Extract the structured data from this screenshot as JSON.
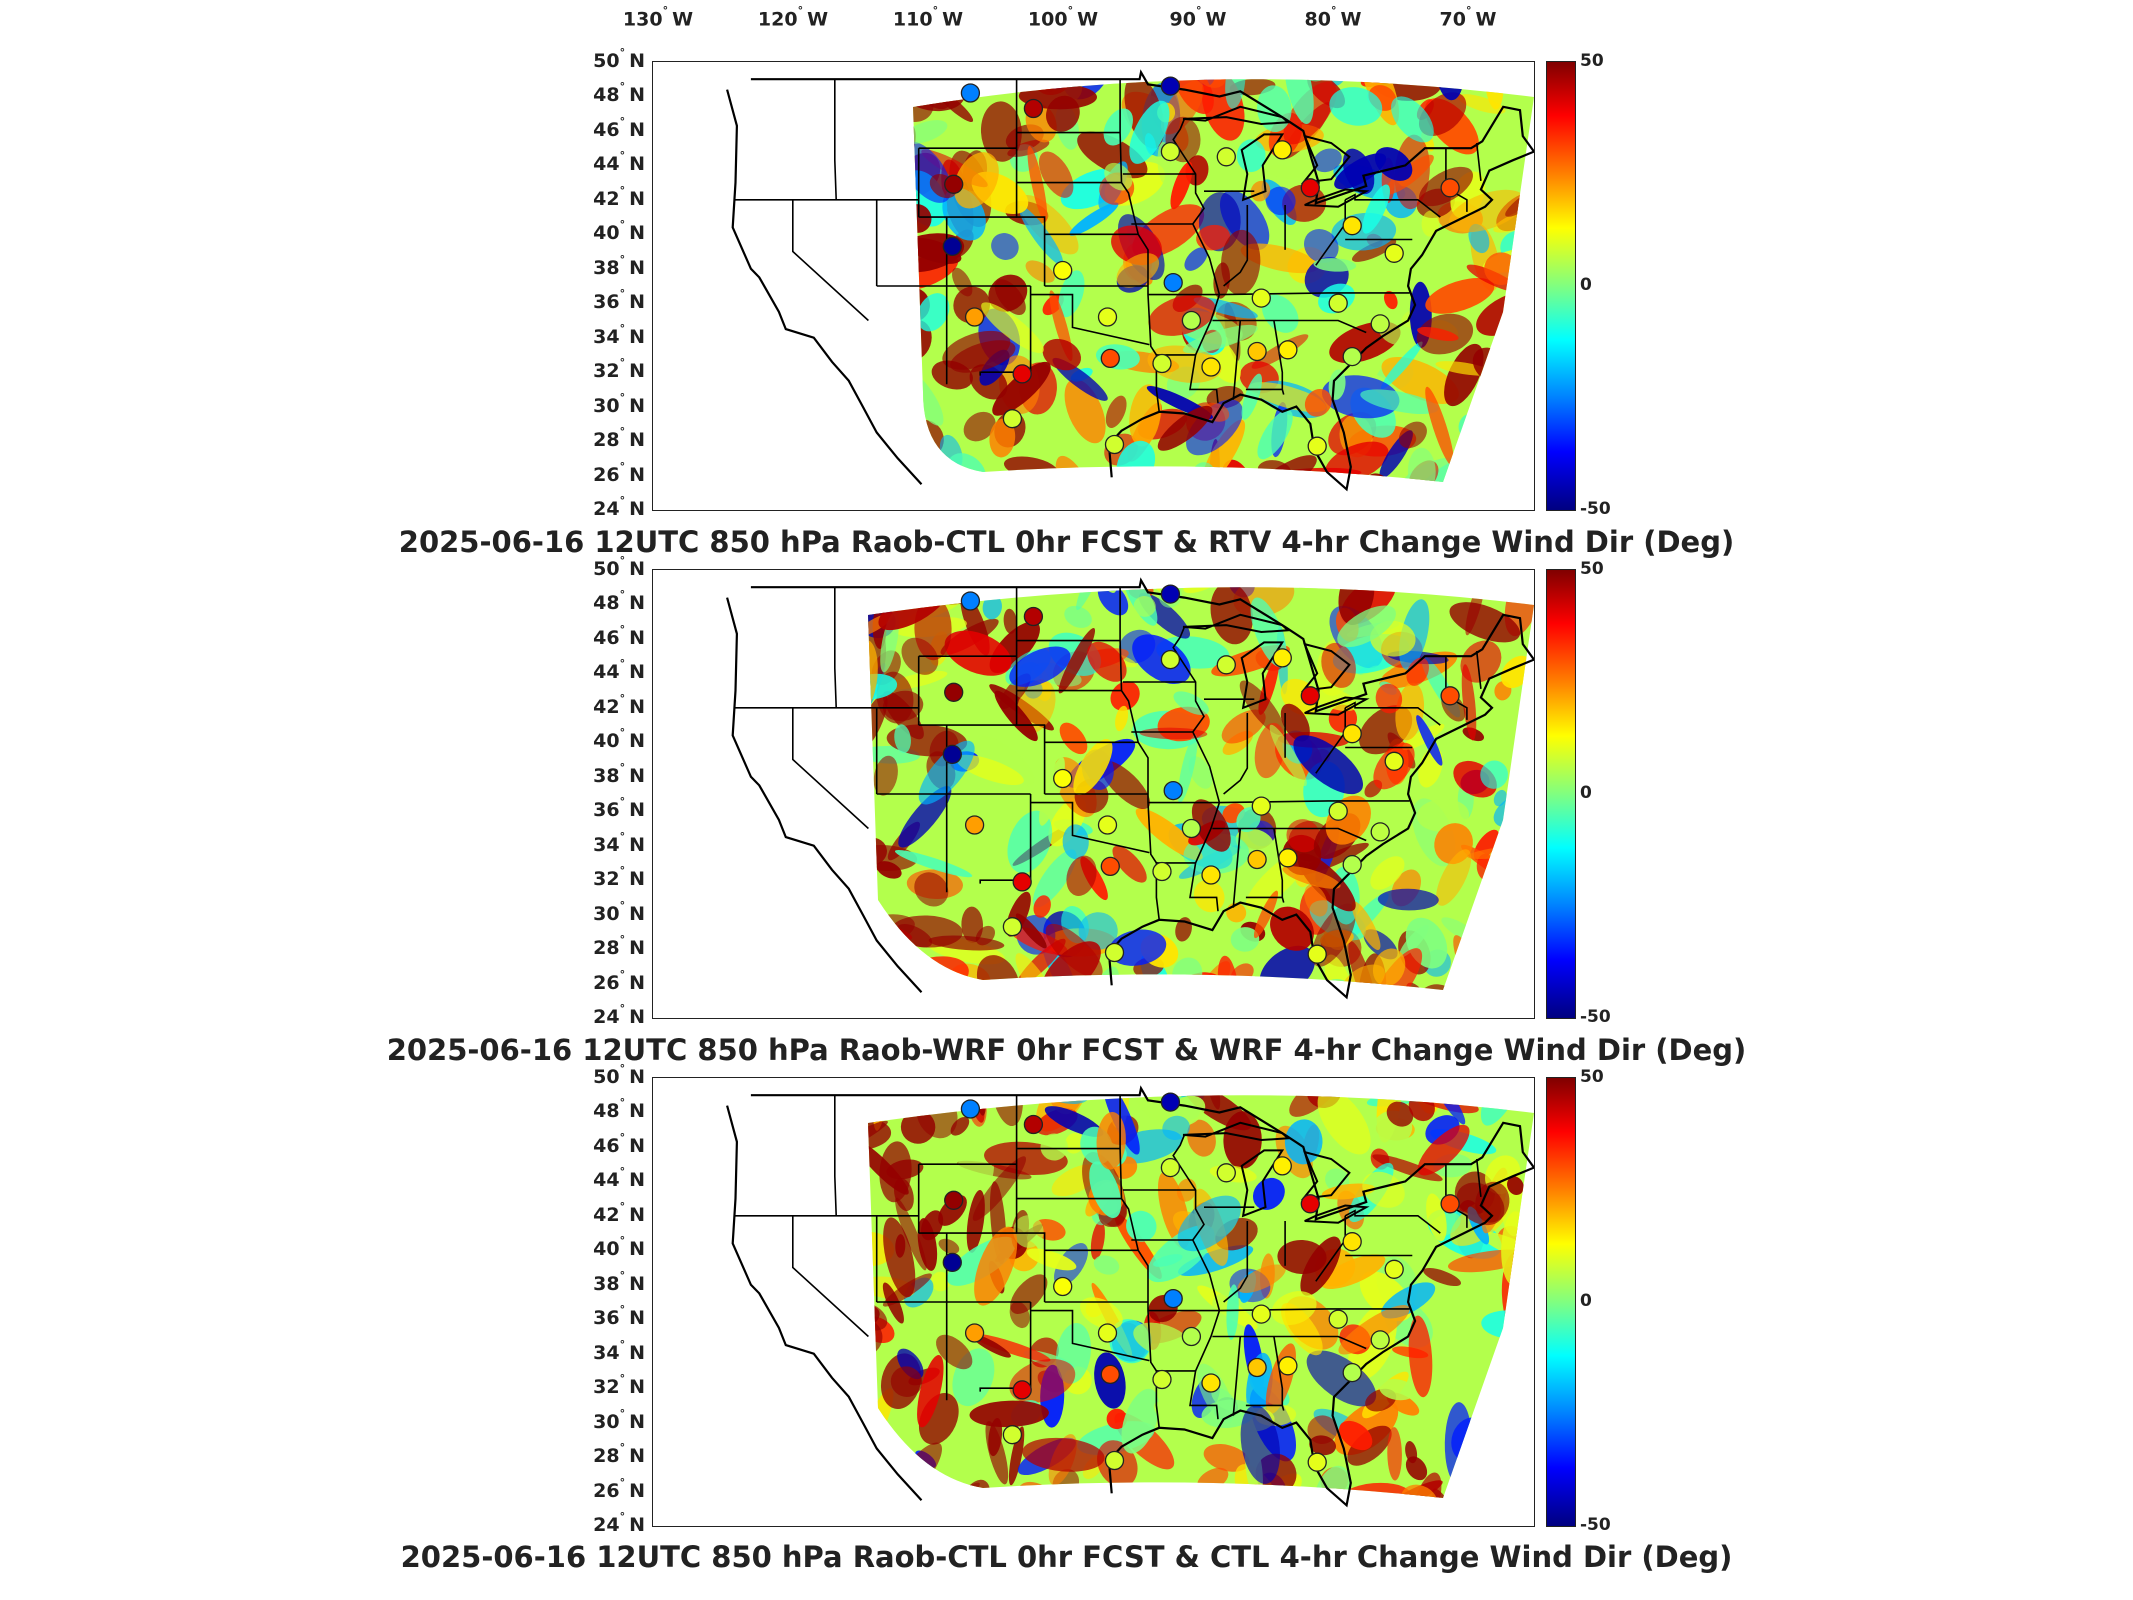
{
  "lon_labels": [
    "130",
    "120",
    "110",
    "100",
    "90",
    "80",
    "70"
  ],
  "lon_suffix": "W",
  "lat_labels": [
    "50",
    "48",
    "46",
    "44",
    "42",
    "40",
    "38",
    "36",
    "34",
    "32",
    "30",
    "28",
    "26",
    "24"
  ],
  "lat_suffix": "N",
  "colorbar": {
    "max": "50",
    "mid": "0",
    "min": "-50",
    "colormap": "jet"
  },
  "panels": [
    {
      "caption": "2025-06-16 12UTC 850 hPa Raob-CTL 0hr FCST & RTV 4-hr Change Wind Dir (Deg)"
    },
    {
      "caption": "2025-06-16 12UTC 850 hPa Raob-WRF 0hr FCST & WRF 4-hr Change Wind Dir (Deg)"
    },
    {
      "caption": "2025-06-16 12UTC 850 hPa Raob-CTL 0hr FCST & CTL 4-hr Change Wind Dir (Deg)"
    }
  ],
  "map_extent": {
    "lon_min": -130,
    "lon_max": -67,
    "lat_min": 24,
    "lat_max": 50
  },
  "raob_stations": [
    {
      "lon": -107.3,
      "lat": 48.2,
      "value": -25
    },
    {
      "lon": -93.0,
      "lat": 48.6,
      "value": -45
    },
    {
      "lon": -102.8,
      "lat": 47.3,
      "value": 45
    },
    {
      "lon": -108.5,
      "lat": 42.9,
      "value": 48
    },
    {
      "lon": -108.6,
      "lat": 39.3,
      "value": -48
    },
    {
      "lon": -107.0,
      "lat": 35.2,
      "value": 22
    },
    {
      "lon": -103.6,
      "lat": 31.9,
      "value": 40
    },
    {
      "lon": -100.7,
      "lat": 37.9,
      "value": 12
    },
    {
      "lon": -97.5,
      "lat": 35.2,
      "value": 10
    },
    {
      "lon": -97.3,
      "lat": 32.8,
      "value": 30
    },
    {
      "lon": -92.8,
      "lat": 37.2,
      "value": -25
    },
    {
      "lon": -93.6,
      "lat": 32.5,
      "value": 8
    },
    {
      "lon": -90.1,
      "lat": 32.3,
      "value": 15
    },
    {
      "lon": -86.8,
      "lat": 33.2,
      "value": 18
    },
    {
      "lon": -84.6,
      "lat": 33.3,
      "value": 14
    },
    {
      "lon": -91.5,
      "lat": 35.0,
      "value": 5
    },
    {
      "lon": -86.5,
      "lat": 36.3,
      "value": 10
    },
    {
      "lon": -81.0,
      "lat": 36.0,
      "value": 8
    },
    {
      "lon": -78.0,
      "lat": 34.8,
      "value": 6
    },
    {
      "lon": -80.0,
      "lat": 32.9,
      "value": 5
    },
    {
      "lon": -82.5,
      "lat": 27.7,
      "value": 10
    },
    {
      "lon": -97.0,
      "lat": 27.8,
      "value": 8
    },
    {
      "lon": -93.0,
      "lat": 44.8,
      "value": 8
    },
    {
      "lon": -89.0,
      "lat": 44.5,
      "value": 8
    },
    {
      "lon": -85.0,
      "lat": 44.9,
      "value": 14
    },
    {
      "lon": -83.0,
      "lat": 42.7,
      "value": 40
    },
    {
      "lon": -80.0,
      "lat": 40.5,
      "value": 15
    },
    {
      "lon": -77.0,
      "lat": 38.9,
      "value": 10
    },
    {
      "lon": -73.0,
      "lat": 42.7,
      "value": 30
    },
    {
      "lon": -104.3,
      "lat": 29.3,
      "value": 8
    }
  ]
}
